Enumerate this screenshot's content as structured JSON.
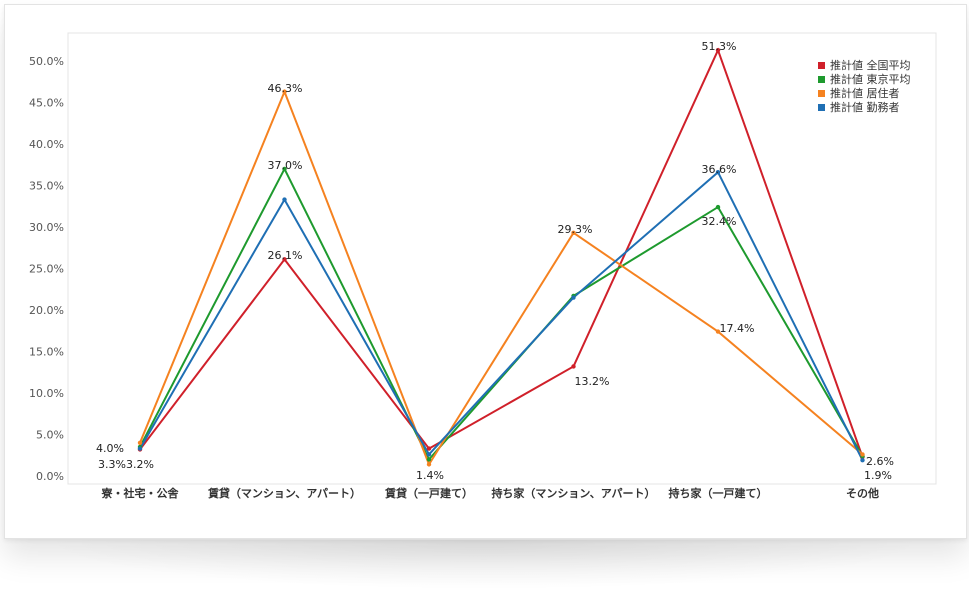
{
  "chart_data": {
    "type": "line",
    "title": "",
    "xlabel": "",
    "ylabel": "",
    "ylim": [
      0,
      52
    ],
    "yticks": [
      "0.0%",
      "5.0%",
      "10.0%",
      "15.0%",
      "20.0%",
      "25.0%",
      "30.0%",
      "35.0%",
      "40.0%",
      "45.0%",
      "50.0%"
    ],
    "categories": [
      "寮・社宅・公舎",
      "賃貸（マンション、アパート）",
      "賃貸（一戸建て）",
      "持ち家（マンション、アパート）",
      "持ち家（一戸建て）",
      "その他"
    ],
    "legend_position": "top-right",
    "series": [
      {
        "name": "推計値 全国平均",
        "color": "#d0202a",
        "values": [
          3.2,
          26.1,
          3.3,
          13.2,
          51.3,
          2.3
        ]
      },
      {
        "name": "推計値 東京平均",
        "color": "#1e9a2e",
        "values": [
          3.5,
          37.0,
          2.0,
          21.7,
          32.4,
          2.4
        ]
      },
      {
        "name": "推計値 居住者",
        "color": "#f58220",
        "values": [
          4.0,
          46.3,
          1.4,
          29.3,
          17.4,
          2.6
        ]
      },
      {
        "name": "推計値 勤務者",
        "color": "#1f6fb4",
        "values": [
          3.3,
          33.3,
          2.6,
          21.5,
          36.6,
          1.9
        ]
      }
    ],
    "data_labels": [
      {
        "text": "4.0%"
      },
      {
        "text": "3.3%"
      },
      {
        "text": "3.2%"
      },
      {
        "text": "46.3%"
      },
      {
        "text": "37.0%"
      },
      {
        "text": "26.1%"
      },
      {
        "text": "1.4%"
      },
      {
        "text": "29.3%"
      },
      {
        "text": "13.2%"
      },
      {
        "text": "51.3%"
      },
      {
        "text": "36.6%"
      },
      {
        "text": "32.4%"
      },
      {
        "text": "17.4%"
      },
      {
        "text": "2.6%"
      },
      {
        "text": "1.9%"
      }
    ]
  }
}
